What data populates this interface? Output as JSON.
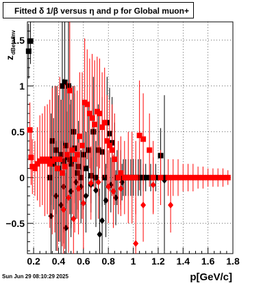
{
  "header": {
    "title": "Fitted δ 1/β versus η and p for Global muon+"
  },
  "footer": {
    "timestamp": "Sun Jun 29 08:10:29 2025"
  },
  "colors": {
    "series_black": "#000000",
    "series_red": "#ff0000",
    "grid": "#000000"
  },
  "chart_data": {
    "type": "scatter",
    "title": "Fitted δ 1/β versus η and p for Global muon+",
    "xlabel": "p[GeV/c]",
    "ylabel": "z",
    "ylabel_sub": "dBeta/Inv",
    "xlim": [
      0.15,
      1.8
    ],
    "ylim": [
      -0.83,
      1.7
    ],
    "xticks": [
      {
        "v": 0.2,
        "label": "0.2"
      },
      {
        "v": 0.4,
        "label": "0.4"
      },
      {
        "v": 0.6,
        "label": "0.6"
      },
      {
        "v": 0.8,
        "label": "0.8"
      },
      {
        "v": 1.0,
        "label": "1"
      },
      {
        "v": 1.2,
        "label": "1.2"
      },
      {
        "v": 1.4,
        "label": "1.4"
      },
      {
        "v": 1.6,
        "label": "1.6"
      },
      {
        "v": 1.8,
        "label": "1.8"
      }
    ],
    "yticks": [
      {
        "v": -0.5,
        "label": "−0.5"
      },
      {
        "v": 0,
        "label": "0"
      },
      {
        "v": 0.5,
        "label": "0.5"
      },
      {
        "v": 1.0,
        "label": "1"
      },
      {
        "v": 1.5,
        "label": "1.5"
      }
    ],
    "grid": true,
    "series": [
      {
        "color": "#000000",
        "markers": "square",
        "points": [
          {
            "x": 0.16,
            "y": 1.38,
            "e": 0.3
          },
          {
            "x": 0.175,
            "y": 1.49,
            "e": 0.25
          },
          {
            "x": 0.33,
            "y": 0.0,
            "e": 0.4
          },
          {
            "x": 0.34,
            "y": 0.2,
            "e": 0.5
          },
          {
            "x": 0.35,
            "y": 0.4,
            "e": 0.6
          },
          {
            "x": 0.36,
            "y": 0.15,
            "e": 0.5
          },
          {
            "x": 0.38,
            "y": 0.3,
            "e": 0.7
          },
          {
            "x": 0.4,
            "y": 0.1,
            "e": 0.8
          },
          {
            "x": 0.42,
            "y": 0.25,
            "e": 0.6
          },
          {
            "x": 0.43,
            "y": 1.0,
            "e": 0.7
          },
          {
            "x": 0.44,
            "y": 0.18,
            "e": 0.9
          },
          {
            "x": 0.45,
            "y": 1.04,
            "e": 0.8
          },
          {
            "x": 0.46,
            "y": 0.35,
            "e": 0.7
          },
          {
            "x": 0.47,
            "y": 0.22,
            "e": 0.5
          },
          {
            "x": 0.48,
            "y": 1.0,
            "e": 0.8
          },
          {
            "x": 0.49,
            "y": 0.2,
            "e": 0.6
          },
          {
            "x": 0.5,
            "y": 0.15,
            "e": 0.7
          },
          {
            "x": 0.52,
            "y": 0.5,
            "e": 0.5
          },
          {
            "x": 0.53,
            "y": 0.32,
            "e": 0.6
          },
          {
            "x": 0.55,
            "y": 0.05,
            "e": 0.4
          },
          {
            "x": 0.56,
            "y": 0.12,
            "e": 0.5
          },
          {
            "x": 0.58,
            "y": 0.0,
            "e": 0.3
          },
          {
            "x": 0.6,
            "y": 0.25,
            "e": 0.6
          },
          {
            "x": 0.62,
            "y": 0.1,
            "e": 0.4
          },
          {
            "x": 0.64,
            "y": 0.3,
            "e": 0.5
          },
          {
            "x": 0.66,
            "y": 0.02,
            "e": 0.3
          },
          {
            "x": 0.68,
            "y": 0.5,
            "e": 0.6
          },
          {
            "x": 0.7,
            "y": 0.0,
            "e": 0.4
          },
          {
            "x": 0.72,
            "y": 0.3,
            "e": 0.5
          },
          {
            "x": 0.75,
            "y": 0.28,
            "e": 0.6
          },
          {
            "x": 0.77,
            "y": 0.0,
            "e": 0.3
          },
          {
            "x": 0.79,
            "y": 0.6,
            "e": 0.5
          },
          {
            "x": 0.81,
            "y": 0.48,
            "e": 0.5
          },
          {
            "x": 0.83,
            "y": 0.38,
            "e": 0.5
          },
          {
            "x": 0.85,
            "y": 0.2,
            "e": 0.4
          },
          {
            "x": 0.87,
            "y": 0.0,
            "e": 0.3
          },
          {
            "x": 0.9,
            "y": 0.0,
            "e": 0.3
          },
          {
            "x": 0.92,
            "y": 0.0,
            "e": 0.2
          },
          {
            "x": 0.94,
            "y": 0.0,
            "e": 0.2
          },
          {
            "x": 0.96,
            "y": 0.0,
            "e": 0.2
          },
          {
            "x": 0.98,
            "y": 0.0,
            "e": 0.2
          },
          {
            "x": 1.0,
            "y": 0.0,
            "e": 0.2
          },
          {
            "x": 1.02,
            "y": 0.0,
            "e": 0.2
          },
          {
            "x": 1.04,
            "y": 0.0,
            "e": 0.2
          },
          {
            "x": 1.06,
            "y": 0.0,
            "e": 0.2
          },
          {
            "x": 1.08,
            "y": 0.0,
            "e": 0.15
          },
          {
            "x": 1.1,
            "y": 0.0,
            "e": 0.15
          },
          {
            "x": 1.14,
            "y": 0.0,
            "e": 0.15
          },
          {
            "x": 1.18,
            "y": 0.0,
            "e": 0.15
          },
          {
            "x": 1.22,
            "y": 0.24,
            "e": 0.3
          },
          {
            "x": 1.25,
            "y": 0.0,
            "e": 0.9
          }
        ]
      },
      {
        "color": "#000000",
        "markers": "diamond",
        "points": [
          {
            "x": 0.34,
            "y": -0.42,
            "e": 0.6
          },
          {
            "x": 0.38,
            "y": -0.2,
            "e": 0.6
          },
          {
            "x": 0.42,
            "y": -0.3,
            "e": 0.7
          },
          {
            "x": 0.44,
            "y": -0.1,
            "e": 0.5
          },
          {
            "x": 0.46,
            "y": -0.55,
            "e": 0.6
          },
          {
            "x": 0.5,
            "y": -0.15,
            "e": 0.5
          },
          {
            "x": 0.54,
            "y": -0.05,
            "e": 0.4
          },
          {
            "x": 0.58,
            "y": -0.1,
            "e": 0.4
          },
          {
            "x": 0.62,
            "y": -0.2,
            "e": 0.4
          },
          {
            "x": 0.66,
            "y": -0.08,
            "e": 0.3
          },
          {
            "x": 0.7,
            "y": -0.14,
            "e": 0.4
          },
          {
            "x": 0.73,
            "y": -0.62,
            "e": 0.5
          },
          {
            "x": 0.75,
            "y": -0.47,
            "e": 0.5
          },
          {
            "x": 0.78,
            "y": -0.25,
            "e": 0.4
          },
          {
            "x": 0.82,
            "y": -0.08,
            "e": 0.3
          },
          {
            "x": 0.86,
            "y": -0.22,
            "e": 0.3
          },
          {
            "x": 0.91,
            "y": -0.05,
            "e": 0.2
          },
          {
            "x": 1.25,
            "y": -0.03,
            "e": 0.3
          }
        ]
      },
      {
        "color": "#ff0000",
        "markers": "square",
        "points": [
          {
            "x": 0.17,
            "y": 0.52,
            "e": 0.3
          },
          {
            "x": 0.18,
            "y": 0.22,
            "e": 0.3
          },
          {
            "x": 0.19,
            "y": 0.12,
            "e": 0.3
          },
          {
            "x": 0.21,
            "y": 0.1,
            "e": 0.3
          },
          {
            "x": 0.23,
            "y": 0.15,
            "e": 0.4
          },
          {
            "x": 0.25,
            "y": 0.18,
            "e": 0.5
          },
          {
            "x": 0.27,
            "y": 0.2,
            "e": 0.5
          },
          {
            "x": 0.29,
            "y": 0.18,
            "e": 0.6
          },
          {
            "x": 0.31,
            "y": 0.2,
            "e": 0.6
          },
          {
            "x": 0.33,
            "y": 0.15,
            "e": 0.7
          },
          {
            "x": 0.35,
            "y": 0.18,
            "e": 0.8
          },
          {
            "x": 0.37,
            "y": 0.2,
            "e": 0.8
          },
          {
            "x": 0.39,
            "y": 0.1,
            "e": 0.9
          },
          {
            "x": 0.41,
            "y": 0.2,
            "e": 0.9
          },
          {
            "x": 0.43,
            "y": 0.05,
            "e": 0.8
          },
          {
            "x": 0.45,
            "y": 0.12,
            "e": 0.9
          },
          {
            "x": 0.47,
            "y": 0.25,
            "e": 0.8
          },
          {
            "x": 0.49,
            "y": 0.95,
            "e": 0.8
          },
          {
            "x": 0.51,
            "y": 0.3,
            "e": 0.7
          },
          {
            "x": 0.53,
            "y": 0.2,
            "e": 0.8
          },
          {
            "x": 0.55,
            "y": 0.25,
            "e": 0.7
          },
          {
            "x": 0.57,
            "y": 0.45,
            "e": 0.7
          },
          {
            "x": 0.59,
            "y": 0.35,
            "e": 0.8
          },
          {
            "x": 0.61,
            "y": 0.82,
            "e": 0.7
          },
          {
            "x": 0.63,
            "y": 0.8,
            "e": 0.6
          },
          {
            "x": 0.65,
            "y": 0.7,
            "e": 0.6
          },
          {
            "x": 0.67,
            "y": 0.65,
            "e": 0.7
          },
          {
            "x": 0.69,
            "y": 0.58,
            "e": 0.7
          },
          {
            "x": 0.71,
            "y": 0.72,
            "e": 0.6
          },
          {
            "x": 0.73,
            "y": 0.7,
            "e": 0.6
          },
          {
            "x": 0.75,
            "y": 0.55,
            "e": 0.6
          },
          {
            "x": 0.77,
            "y": 0.6,
            "e": 0.6
          },
          {
            "x": 0.79,
            "y": 0.4,
            "e": 0.5
          },
          {
            "x": 0.81,
            "y": 0.35,
            "e": 0.5
          },
          {
            "x": 0.83,
            "y": 0.3,
            "e": 0.5
          },
          {
            "x": 0.85,
            "y": 0.2,
            "e": 0.5
          },
          {
            "x": 0.88,
            "y": 0.0,
            "e": 0.4
          },
          {
            "x": 0.9,
            "y": 0.05,
            "e": 0.4
          },
          {
            "x": 0.93,
            "y": 0.0,
            "e": 0.4
          },
          {
            "x": 0.96,
            "y": 0.0,
            "e": 0.5
          },
          {
            "x": 0.99,
            "y": 0.0,
            "e": 0.5
          },
          {
            "x": 1.02,
            "y": 0.0,
            "e": 0.4
          },
          {
            "x": 1.05,
            "y": 0.46,
            "e": 0.6
          },
          {
            "x": 1.08,
            "y": 0.42,
            "e": 0.5
          },
          {
            "x": 1.13,
            "y": 0.3,
            "e": 0.4
          },
          {
            "x": 1.16,
            "y": 0.0,
            "e": 0.4
          },
          {
            "x": 1.22,
            "y": 0.0,
            "e": 0.3
          },
          {
            "x": 1.28,
            "y": 0.0,
            "e": 0.2
          },
          {
            "x": 1.32,
            "y": 0.0,
            "e": 0.2
          },
          {
            "x": 1.36,
            "y": 0.0,
            "e": 0.2
          },
          {
            "x": 1.4,
            "y": 0.0,
            "e": 0.15
          },
          {
            "x": 1.44,
            "y": 0.0,
            "e": 0.15
          },
          {
            "x": 1.48,
            "y": 0.0,
            "e": 0.15
          },
          {
            "x": 1.52,
            "y": 0.0,
            "e": 0.12
          },
          {
            "x": 1.56,
            "y": 0.0,
            "e": 0.12
          },
          {
            "x": 1.6,
            "y": 0.0,
            "e": 0.1
          },
          {
            "x": 1.64,
            "y": 0.0,
            "e": 0.1
          },
          {
            "x": 1.68,
            "y": 0.0,
            "e": 0.1
          },
          {
            "x": 1.72,
            "y": 0.0,
            "e": 0.1
          },
          {
            "x": 1.76,
            "y": 0.0,
            "e": 0.08
          }
        ]
      },
      {
        "color": "#ff0000",
        "markers": "diamond",
        "points": [
          {
            "x": 0.44,
            "y": -0.35,
            "e": 0.7
          },
          {
            "x": 0.48,
            "y": -0.22,
            "e": 0.6
          },
          {
            "x": 0.52,
            "y": -0.45,
            "e": 0.6
          },
          {
            "x": 0.56,
            "y": -0.12,
            "e": 0.5
          },
          {
            "x": 0.6,
            "y": -0.28,
            "e": 0.5
          },
          {
            "x": 0.66,
            "y": -0.06,
            "e": 0.4
          },
          {
            "x": 0.72,
            "y": -0.05,
            "e": 0.4
          },
          {
            "x": 0.8,
            "y": -0.1,
            "e": 0.4
          },
          {
            "x": 0.84,
            "y": -0.15,
            "e": 0.4
          },
          {
            "x": 0.9,
            "y": -0.12,
            "e": 0.3
          },
          {
            "x": 1.02,
            "y": -0.72,
            "e": 0.5
          },
          {
            "x": 1.08,
            "y": -0.3,
            "e": 0.4
          },
          {
            "x": 1.16,
            "y": -0.08,
            "e": 0.3
          },
          {
            "x": 1.3,
            "y": -0.3,
            "e": 0.3
          }
        ]
      }
    ]
  }
}
